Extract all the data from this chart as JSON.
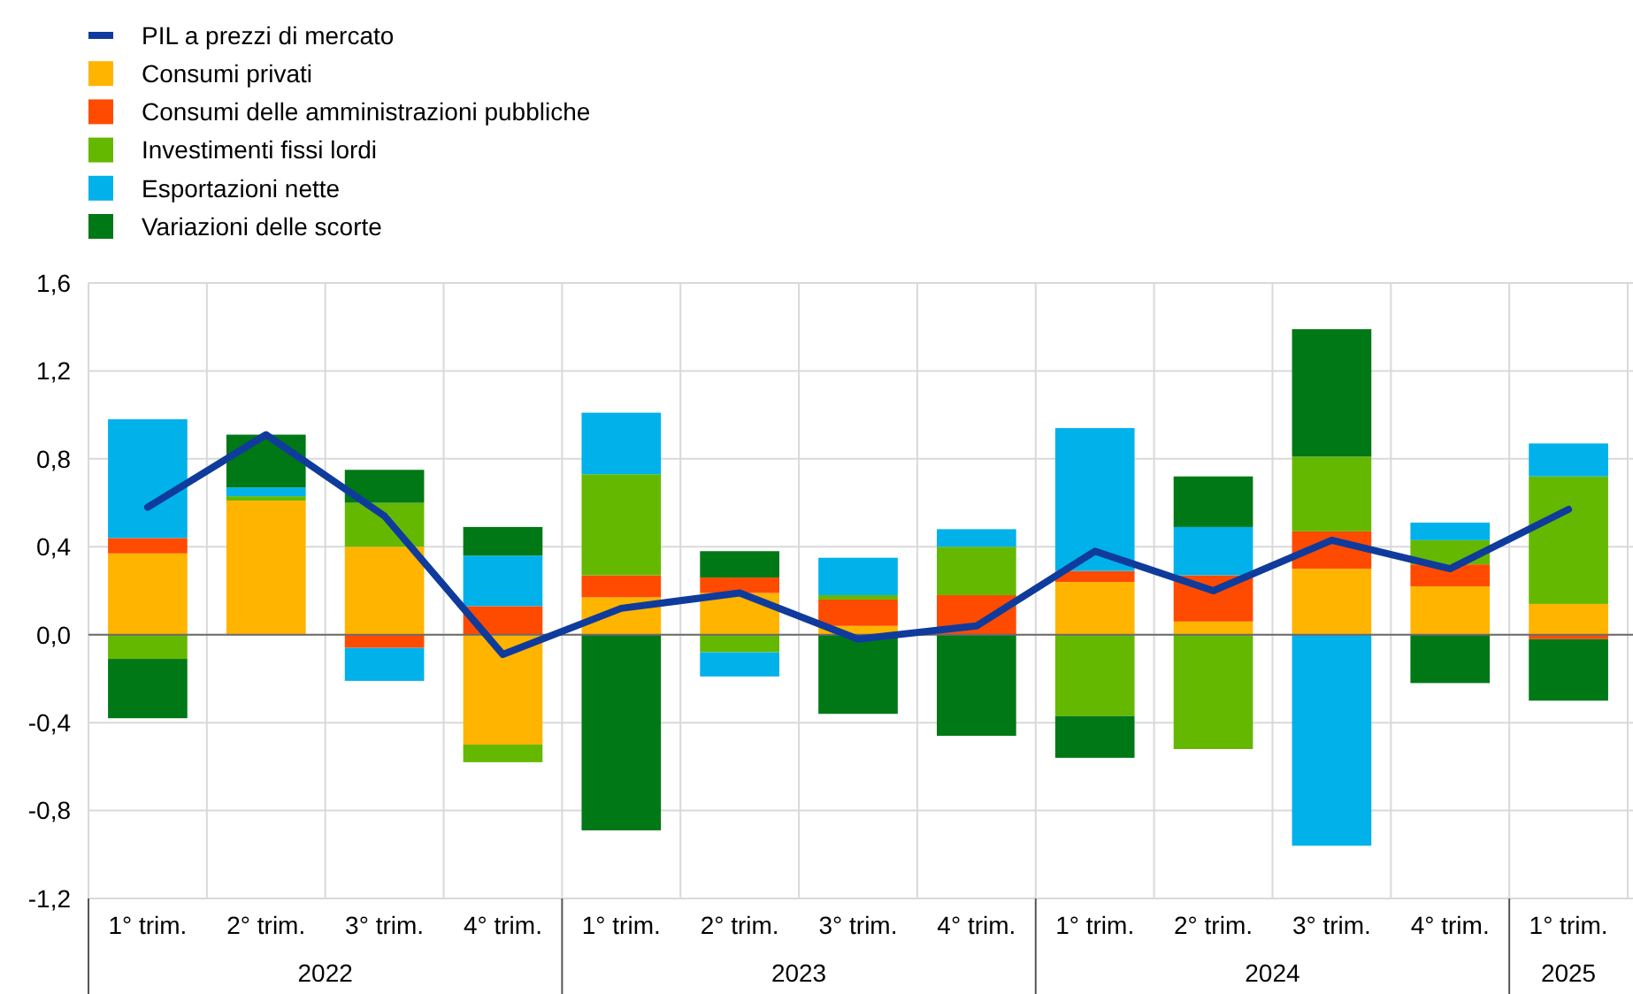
{
  "chart_data": {
    "type": "bar",
    "stacked": true,
    "categories": [
      "1° trim.",
      "2° trim.",
      "3° trim.",
      "4° trim.",
      "1° trim.",
      "2° trim.",
      "3° trim.",
      "4° trim.",
      "1° trim.",
      "2° trim.",
      "3° trim.",
      "4° trim.",
      "1° trim."
    ],
    "series": [
      {
        "name": "PIL a prezzi di mercato",
        "type": "line",
        "color": "#0f3b9c",
        "values": [
          0.58,
          0.91,
          0.54,
          -0.09,
          0.12,
          0.19,
          -0.02,
          0.04,
          0.38,
          0.2,
          0.43,
          0.3,
          0.57
        ]
      },
      {
        "name": "Consumi privati",
        "color": "#ffb400",
        "values": [
          0.37,
          0.61,
          0.4,
          -0.5,
          0.17,
          0.19,
          0.04,
          0,
          0.24,
          0.06,
          0.3,
          0.22,
          0.14
        ]
      },
      {
        "name": "Consumi delle amministrazioni pubbliche",
        "color": "#ff4b00",
        "values": [
          0.07,
          0,
          -0.06,
          0.13,
          0.1,
          0.07,
          0.12,
          0.18,
          0.05,
          0.21,
          0.17,
          0.1,
          -0.02
        ]
      },
      {
        "name": "Investimenti fissi lordi",
        "color": "#65b800",
        "values": [
          -0.11,
          0.02,
          0.2,
          -0.08,
          0.46,
          -0.08,
          0.02,
          0.22,
          -0.37,
          -0.52,
          0.34,
          0.11,
          0.58
        ]
      },
      {
        "name": "Esportazioni nette",
        "color": "#00b1ea",
        "values": [
          0.54,
          0.04,
          -0.15,
          0.23,
          0.28,
          -0.11,
          0.17,
          0.08,
          0.65,
          0.22,
          -0.96,
          0.08,
          0.15
        ]
      },
      {
        "name": "Variazioni delle scorte",
        "color": "#007816",
        "values": [
          -0.27,
          0.24,
          0.15,
          0.13,
          -0.89,
          0.12,
          -0.36,
          -0.46,
          -0.19,
          0.23,
          0.58,
          -0.22,
          -0.28
        ]
      }
    ],
    "ylim": [
      -1.2,
      1.6
    ],
    "yticks": [
      {
        "value": -1.2,
        "label": "-1,2"
      },
      {
        "value": -0.8,
        "label": "-0,8"
      },
      {
        "value": -0.4,
        "label": "-0,4"
      },
      {
        "value": 0,
        "label": "0,0"
      },
      {
        "value": 0.4,
        "label": "0,4"
      },
      {
        "value": 0.8,
        "label": "0,8"
      },
      {
        "value": 1.2,
        "label": "1,2"
      },
      {
        "value": 1.6,
        "label": "1,6"
      }
    ],
    "grid": true,
    "legend": "top left",
    "annotations": [
      "2022",
      "2023",
      "2024",
      "2025"
    ]
  }
}
